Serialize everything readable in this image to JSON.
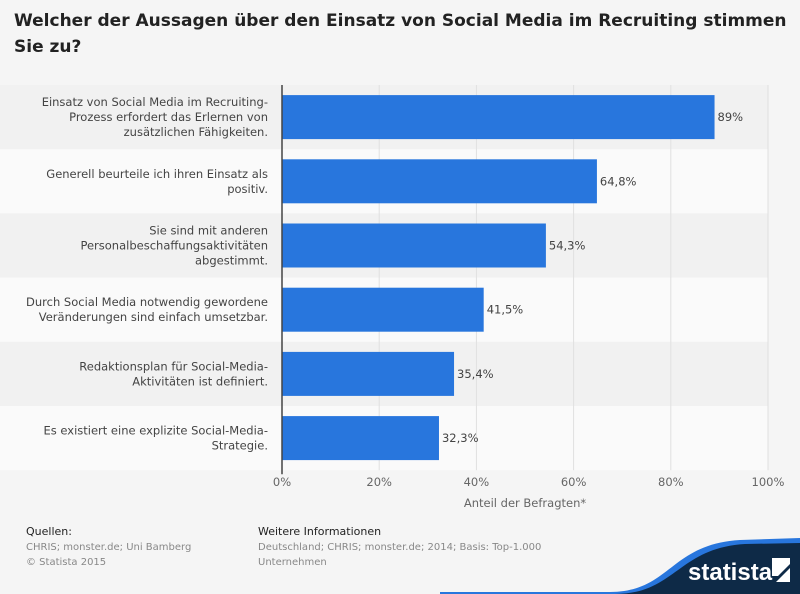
{
  "chart_data": {
    "type": "bar",
    "orientation": "horizontal",
    "title": "Welcher der Aussagen über den Einsatz von Social Media im Recruiting stimmen Sie zu?",
    "categories": [
      [
        "Einsatz von Social Media im Recruiting-",
        "Prozess erfordert das Erlernen von",
        "zusätzlichen Fähigkeiten."
      ],
      [
        "Generell beurteile ich ihren Einsatz als",
        "positiv."
      ],
      [
        "Sie sind mit anderen",
        "Personalbeschaffungsaktivitäten",
        "abgestimmt."
      ],
      [
        "Durch Social Media notwendig gewordene",
        "Veränderungen sind einfach umsetzbar."
      ],
      [
        "Redaktionsplan für Social-Media-",
        "Aktivitäten ist definiert."
      ],
      [
        "Es existiert eine explizite Social-Media-",
        "Strategie."
      ]
    ],
    "values": [
      89,
      64.8,
      54.3,
      41.5,
      35.4,
      32.3
    ],
    "value_labels": [
      "89%",
      "64,8%",
      "54,3%",
      "41,5%",
      "35,4%",
      "32,3%"
    ],
    "xlabel": "Anteil der Befragten*",
    "xlim": [
      0,
      100
    ],
    "xticks": [
      "0%",
      "20%",
      "40%",
      "60%",
      "80%",
      "100%"
    ],
    "grid": true,
    "bar_color": "#2876dd"
  },
  "footer": {
    "sources_title": "Quellen:",
    "sources_line1": "CHRIS; monster.de; Uni Bamberg",
    "sources_line2": "© Statista 2015",
    "info_title": "Weitere Informationen",
    "info_line1": "Deutschland; CHRIS; monster.de; 2014; Basis: Top-1.000",
    "info_line2": "Unternehmen"
  },
  "logo": {
    "text": "statista",
    "color": "#0e2a47"
  }
}
